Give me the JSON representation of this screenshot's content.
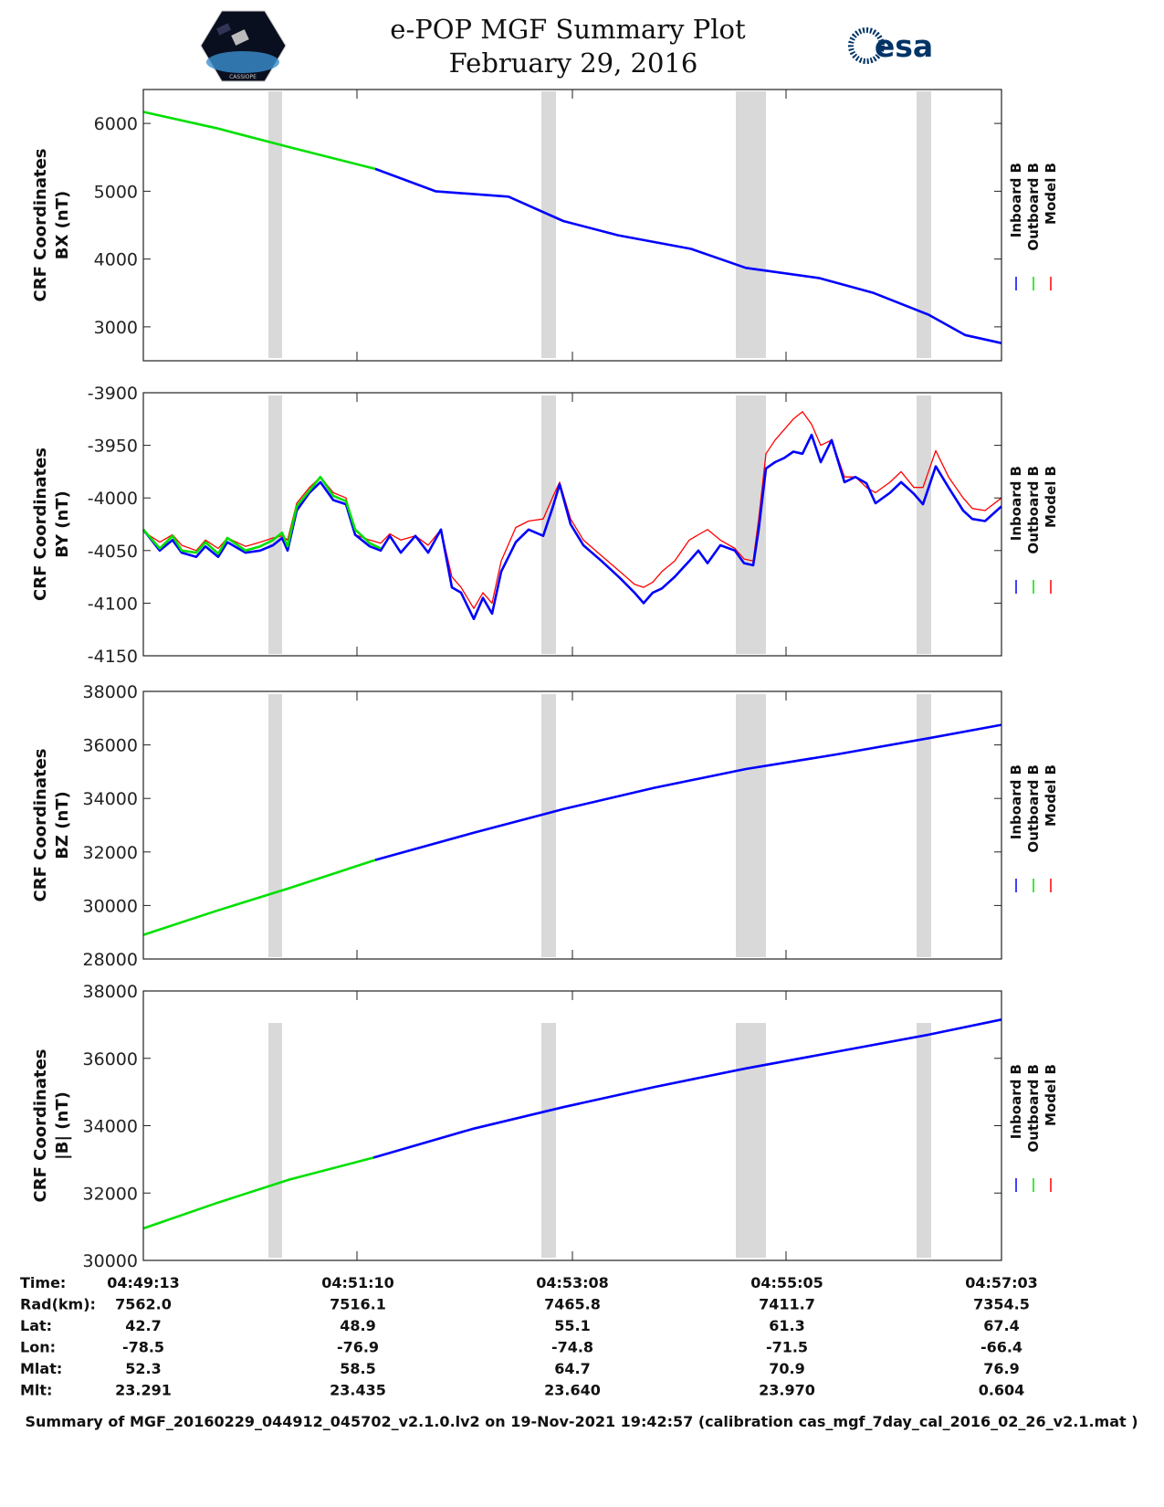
{
  "header": {
    "title": "e-POP MGF Summary Plot",
    "date": "February 29, 2016",
    "esa_logo_text": "esa",
    "left_logo_text": "CASSIOPE"
  },
  "legend": {
    "inboard": "Inboard B",
    "outboard": "Outboard B",
    "model": "Model B"
  },
  "colors": {
    "inboard": "#0000ff",
    "outboard": "#00e000",
    "model": "#ff0000",
    "band": "#d9d9d9"
  },
  "chart_data": [
    {
      "type": "line",
      "ylabel1": "CRF Coordinates",
      "ylabel2": "BX (nT)",
      "ylim": [
        2500,
        6500
      ],
      "yticks": [
        "3000",
        "4000",
        "5000",
        "6000"
      ],
      "ytick_values": [
        3000,
        4000,
        5000,
        6000
      ],
      "series": [
        {
          "name": "Outboard B",
          "x": [
            0,
            40,
            80,
            127
          ],
          "y": [
            6170,
            5930,
            5650,
            5330
          ]
        },
        {
          "name": "Inboard B",
          "x": [
            127,
            160,
            200,
            230,
            260,
            300,
            330,
            370,
            400,
            430,
            450,
            470
          ],
          "y": [
            5330,
            5000,
            4920,
            4560,
            4350,
            4150,
            3870,
            3720,
            3500,
            3180,
            2880,
            2760
          ]
        },
        {
          "name": "Model B",
          "x": [
            0,
            40,
            80,
            127,
            160,
            200,
            230,
            260,
            300,
            330,
            370,
            400,
            430,
            450,
            470
          ],
          "y": [
            6170,
            5930,
            5650,
            5330,
            5000,
            4920,
            4560,
            4350,
            4150,
            3870,
            3720,
            3500,
            3180,
            2880,
            2760
          ]
        }
      ]
    },
    {
      "type": "line",
      "ylabel1": "CRF Coordinates",
      "ylabel2": "BY (nT)",
      "ylim": [
        -4150,
        -3900
      ],
      "yticks": [
        "-3900",
        "-3950",
        "-4000",
        "-4050",
        "-4100",
        "-4150"
      ],
      "ytick_values": [
        -3900,
        -3950,
        -4000,
        -4050,
        -4100,
        -4150
      ],
      "series": [
        {
          "name": "Outboard B",
          "x": [
            0,
            9,
            16,
            21,
            29,
            34,
            41,
            46,
            56,
            64,
            71,
            76,
            79,
            84,
            91,
            97,
            104,
            111,
            116,
            124,
            130
          ],
          "y": [
            -4030,
            -4048,
            -4036,
            -4050,
            -4052,
            -4042,
            -4053,
            -4038,
            -4050,
            -4046,
            -4040,
            -4033,
            -4046,
            -4008,
            -3993,
            -3980,
            -3998,
            -4003,
            -4030,
            -4043,
            -4048
          ]
        },
        {
          "name": "Inboard B",
          "x": [
            0,
            9,
            16,
            21,
            29,
            34,
            41,
            46,
            56,
            64,
            71,
            76,
            79,
            84,
            91,
            97,
            104,
            111,
            116,
            124,
            130,
            135,
            141,
            149,
            156,
            163,
            169,
            174,
            181,
            186,
            191,
            196,
            204,
            211,
            219,
            224,
            228,
            234,
            241,
            251,
            261,
            269,
            274,
            279,
            284,
            291,
            299,
            304,
            309,
            316,
            324,
            329,
            334,
            337,
            341,
            346,
            351,
            356,
            361,
            366,
            371,
            377,
            384,
            390,
            396,
            401,
            409,
            415,
            422,
            427,
            434,
            441,
            449,
            454,
            461,
            470
          ],
          "y": [
            -4030,
            -4050,
            -4040,
            -4052,
            -4056,
            -4046,
            -4056,
            -4042,
            -4052,
            -4050,
            -4045,
            -4038,
            -4050,
            -4012,
            -3995,
            -3985,
            -4002,
            -4006,
            -4035,
            -4046,
            -4050,
            -4036,
            -4052,
            -4036,
            -4052,
            -4030,
            -4085,
            -4090,
            -4115,
            -4095,
            -4110,
            -4070,
            -4042,
            -4030,
            -4036,
            -4010,
            -3987,
            -4025,
            -4045,
            -4060,
            -4076,
            -4090,
            -4100,
            -4090,
            -4086,
            -4075,
            -4060,
            -4050,
            -4062,
            -4045,
            -4050,
            -4062,
            -4064,
            -4030,
            -3972,
            -3966,
            -3962,
            -3956,
            -3958,
            -3940,
            -3966,
            -3945,
            -3985,
            -3980,
            -3986,
            -4005,
            -3995,
            -3985,
            -3996,
            -4006,
            -3970,
            -3990,
            -4012,
            -4020,
            -4022,
            -4008
          ]
        },
        {
          "name": "Model B",
          "x": [
            0,
            9,
            16,
            21,
            29,
            34,
            41,
            46,
            56,
            64,
            71,
            76,
            79,
            84,
            91,
            97,
            104,
            111,
            116,
            124,
            130,
            135,
            141,
            149,
            156,
            163,
            169,
            174,
            181,
            186,
            191,
            196,
            204,
            211,
            219,
            224,
            228,
            234,
            241,
            251,
            261,
            269,
            274,
            279,
            284,
            291,
            299,
            304,
            309,
            316,
            324,
            329,
            334,
            337,
            341,
            346,
            351,
            356,
            361,
            366,
            371,
            377,
            384,
            390,
            396,
            401,
            409,
            415,
            422,
            427,
            434,
            441,
            449,
            454,
            461,
            470
          ],
          "y": [
            -4032,
            -4042,
            -4035,
            -4045,
            -4050,
            -4040,
            -4048,
            -4038,
            -4046,
            -4042,
            -4038,
            -4036,
            -4040,
            -4005,
            -3990,
            -3980,
            -3995,
            -4000,
            -4035,
            -4040,
            -4043,
            -4034,
            -4040,
            -4036,
            -4045,
            -4030,
            -4075,
            -4085,
            -4105,
            -4090,
            -4100,
            -4060,
            -4028,
            -4022,
            -4020,
            -4000,
            -3985,
            -4020,
            -4040,
            -4055,
            -4070,
            -4082,
            -4085,
            -4080,
            -4070,
            -4060,
            -4040,
            -4035,
            -4030,
            -4040,
            -4048,
            -4058,
            -4060,
            -4020,
            -3958,
            -3945,
            -3935,
            -3925,
            -3918,
            -3930,
            -3950,
            -3945,
            -3980,
            -3980,
            -3990,
            -3995,
            -3985,
            -3975,
            -3990,
            -3990,
            -3955,
            -3980,
            -4000,
            -4010,
            -4012,
            -4000
          ]
        }
      ]
    },
    {
      "type": "line",
      "ylabel1": "CRF Coordinates",
      "ylabel2": "BZ (nT)",
      "ylim": [
        28000,
        38000
      ],
      "yticks": [
        "28000",
        "30000",
        "32000",
        "34000",
        "36000",
        "38000"
      ],
      "ytick_values": [
        28000,
        30000,
        32000,
        34000,
        36000,
        38000
      ],
      "series": [
        {
          "name": "Outboard B",
          "x": [
            0,
            40,
            80,
            127
          ],
          "y": [
            28900,
            29800,
            30650,
            31700
          ]
        },
        {
          "name": "Inboard B",
          "x": [
            127,
            180,
            230,
            280,
            330,
            380,
            430,
            470
          ],
          "y": [
            31700,
            32700,
            33600,
            34400,
            35100,
            35650,
            36250,
            36750
          ]
        },
        {
          "name": "Model B",
          "x": [
            0,
            40,
            80,
            127,
            180,
            230,
            280,
            330,
            380,
            430,
            470
          ],
          "y": [
            28900,
            29800,
            30650,
            31700,
            32700,
            33600,
            34400,
            35100,
            35650,
            36250,
            36750
          ]
        }
      ]
    },
    {
      "type": "line",
      "ylabel1": "CRF Coordinates",
      "ylabel2": "|B| (nT)",
      "ylim": [
        30000,
        38000
      ],
      "yticks": [
        "30000",
        "32000",
        "34000",
        "36000",
        "38000"
      ],
      "ytick_values": [
        30000,
        32000,
        34000,
        36000,
        38000
      ],
      "series": [
        {
          "name": "Outboard B",
          "x": [
            0,
            40,
            80,
            126
          ],
          "y": [
            30950,
            31700,
            32400,
            33050
          ]
        },
        {
          "name": "Inboard B",
          "x": [
            126,
            180,
            230,
            280,
            330,
            380,
            430,
            470
          ],
          "y": [
            33050,
            33900,
            34550,
            35150,
            35700,
            36200,
            36700,
            37150
          ]
        },
        {
          "name": "Model B",
          "x": [
            0,
            40,
            80,
            126,
            180,
            230,
            280,
            330,
            380,
            430,
            470
          ],
          "y": [
            30950,
            31700,
            32400,
            33050,
            33900,
            34550,
            35150,
            35700,
            36200,
            36700,
            37150
          ]
        }
      ]
    }
  ],
  "x_range_seconds": [
    0,
    470
  ],
  "xtick_seconds": [
    0,
    117,
    235,
    352,
    470
  ],
  "gray_bands_seconds": [
    [
      68.5,
      76
    ],
    [
      218,
      226
    ],
    [
      324.5,
      341
    ],
    [
      423.5,
      431.5
    ]
  ],
  "table": {
    "rows": [
      {
        "label": "Time:",
        "values": [
          "04:49:13",
          "04:51:10",
          "04:53:08",
          "04:55:05",
          "04:57:03"
        ]
      },
      {
        "label": "Rad(km):",
        "values": [
          "7562.0",
          "7516.1",
          "7465.8",
          "7411.7",
          "7354.5"
        ]
      },
      {
        "label": "Lat:",
        "values": [
          "42.7",
          "48.9",
          "55.1",
          "61.3",
          "67.4"
        ]
      },
      {
        "label": "Lon:",
        "values": [
          "-78.5",
          "-76.9",
          "-74.8",
          "-71.5",
          "-66.4"
        ]
      },
      {
        "label": "Mlat:",
        "values": [
          "52.3",
          "58.5",
          "64.7",
          "70.9",
          "76.9"
        ]
      },
      {
        "label": "Mlt:",
        "values": [
          "23.291",
          "23.435",
          "23.640",
          "23.970",
          "0.604"
        ]
      }
    ]
  },
  "footer": "Summary of MGF_20160229_044912_045702_v2.1.0.lv2 on 19-Nov-2021 19:42:57 (calibration cas_mgf_7day_cal_2016_02_26_v2.1.mat )"
}
